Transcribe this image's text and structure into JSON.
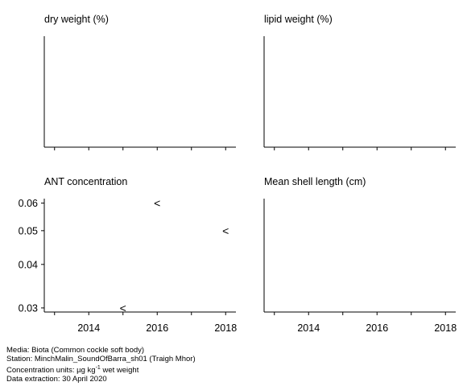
{
  "chart_data": [
    {
      "type": "scatter",
      "title": "dry weight (%)",
      "xlabel": "",
      "ylabel": "",
      "xlim": [
        2012.7,
        2018.3
      ],
      "x_ticks": [
        2013,
        2014,
        2015,
        2016,
        2017,
        2018
      ],
      "x_tick_labels": [],
      "y_ticks": [],
      "points": []
    },
    {
      "type": "scatter",
      "title": "lipid weight (%)",
      "xlabel": "",
      "ylabel": "",
      "xlim": [
        2012.7,
        2018.3
      ],
      "x_ticks": [
        2013,
        2014,
        2015,
        2016,
        2017,
        2018
      ],
      "x_tick_labels": [],
      "y_ticks": [],
      "points": []
    },
    {
      "type": "scatter",
      "title": "ANT concentration",
      "xlabel": "",
      "ylabel": "",
      "xlim": [
        2012.7,
        2018.3
      ],
      "ylim": [
        0.0292,
        0.0618
      ],
      "y_scale": "log",
      "x_ticks": [
        2013,
        2014,
        2015,
        2016,
        2017,
        2018
      ],
      "x_tick_labels": [
        "2014",
        "2016",
        "2018"
      ],
      "y_ticks": [
        0.03,
        0.04,
        0.05,
        0.06
      ],
      "y_tick_labels": [
        "0.03",
        "0.04",
        "0.05",
        "0.06"
      ],
      "points": [
        {
          "x": 2015,
          "y": 0.03,
          "marker": "<"
        },
        {
          "x": 2016,
          "y": 0.06,
          "marker": "<"
        },
        {
          "x": 2018,
          "y": 0.05,
          "marker": "<"
        }
      ]
    },
    {
      "type": "scatter",
      "title": "Mean shell length (cm)",
      "xlabel": "",
      "ylabel": "",
      "xlim": [
        2012.7,
        2018.3
      ],
      "x_ticks": [
        2013,
        2014,
        2015,
        2016,
        2017,
        2018
      ],
      "x_tick_labels": [
        "2014",
        "2016",
        "2018"
      ],
      "y_ticks": [],
      "points": []
    }
  ],
  "footer": {
    "media": "Media: Biota (Common cockle soft body)",
    "station": "Station: MinchMalin_SoundOfBarra_sh01 (Traigh Mhor)",
    "units_prefix": "Concentration units:  µg kg",
    "units_exp": "-1",
    "units_suffix": " wet weight",
    "extraction": "Data extraction: 30 April 2020"
  }
}
